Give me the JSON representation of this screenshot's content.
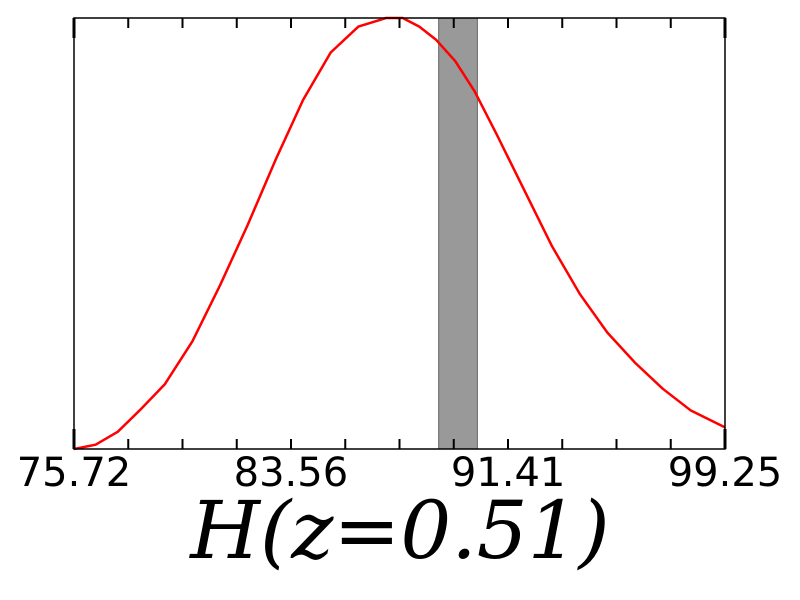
{
  "chart_data": {
    "type": "line",
    "title": "",
    "xlabel": "H(z=0.51)",
    "ylabel": "",
    "xlim": [
      75.72,
      99.25
    ],
    "ylim": [
      0,
      1.0
    ],
    "xticks": [
      "75.72",
      "83.56",
      "91.41",
      "99.25"
    ],
    "grid": false,
    "legend": "none",
    "series": [
      {
        "color": "#ff0000",
        "x": [
          75.72,
          76.5,
          77.3,
          78.1,
          79.0,
          80.0,
          81.0,
          82.0,
          83.0,
          84.0,
          85.0,
          86.0,
          87.0,
          87.6,
          88.2,
          88.8,
          89.5,
          90.2,
          91.0,
          92.0,
          93.0,
          94.0,
          95.0,
          96.0,
          97.0,
          98.0,
          99.25
        ],
        "y": [
          0.0,
          0.01,
          0.04,
          0.09,
          0.15,
          0.25,
          0.38,
          0.52,
          0.67,
          0.81,
          0.92,
          0.98,
          1.0,
          1.0,
          0.98,
          0.95,
          0.9,
          0.83,
          0.73,
          0.6,
          0.47,
          0.36,
          0.27,
          0.2,
          0.14,
          0.09,
          0.05
        ]
      }
    ],
    "band": {
      "x0": 88.9,
      "x1": 90.3,
      "color": "#999999"
    }
  }
}
